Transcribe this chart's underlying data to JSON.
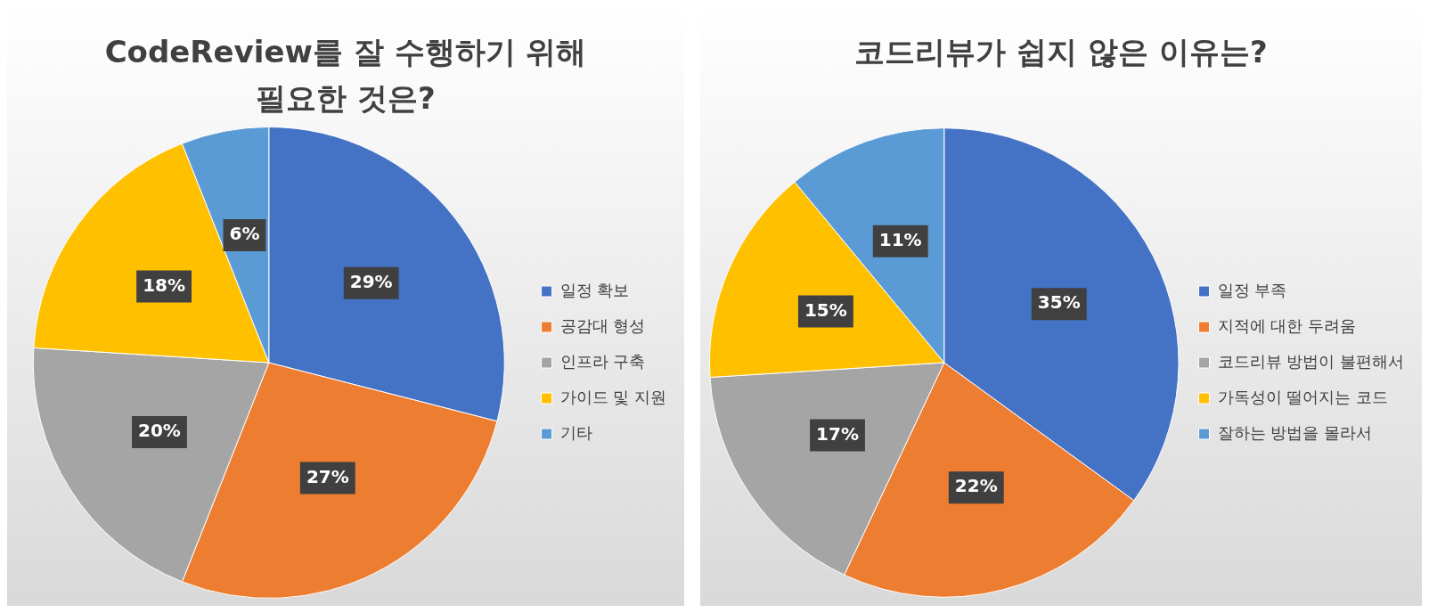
{
  "chart_data": [
    {
      "type": "pie",
      "title": "CodeReview를 잘 수행하기 위해 필요한 것은?",
      "categories": [
        "일정 확보",
        "공감대 형성",
        "인프라 구축",
        "가이드 및 지원",
        "기타"
      ],
      "values": [
        29,
        27,
        20,
        18,
        6
      ],
      "colors": [
        "#4472c4",
        "#ed7d31",
        "#a5a5a5",
        "#ffc000",
        "#5b9bd5"
      ],
      "value_labels": [
        "29%",
        "27%",
        "20%",
        "18%",
        "6%"
      ],
      "legend": "right"
    },
    {
      "type": "pie",
      "title": "코드리뷰가 쉽지 않은 이유는?",
      "categories": [
        "일정 부족",
        "지적에 대한 두려움",
        "코드리뷰 방법이 불편해서",
        "가독성이 떨어지는 코드",
        "잘하는 방법을 몰라서"
      ],
      "values": [
        35,
        22,
        17,
        15,
        11
      ],
      "colors": [
        "#4472c4",
        "#ed7d31",
        "#a5a5a5",
        "#ffc000",
        "#5b9bd5"
      ],
      "value_labels": [
        "35%",
        "22%",
        "17%",
        "15%",
        "11%"
      ],
      "legend": "right"
    }
  ]
}
